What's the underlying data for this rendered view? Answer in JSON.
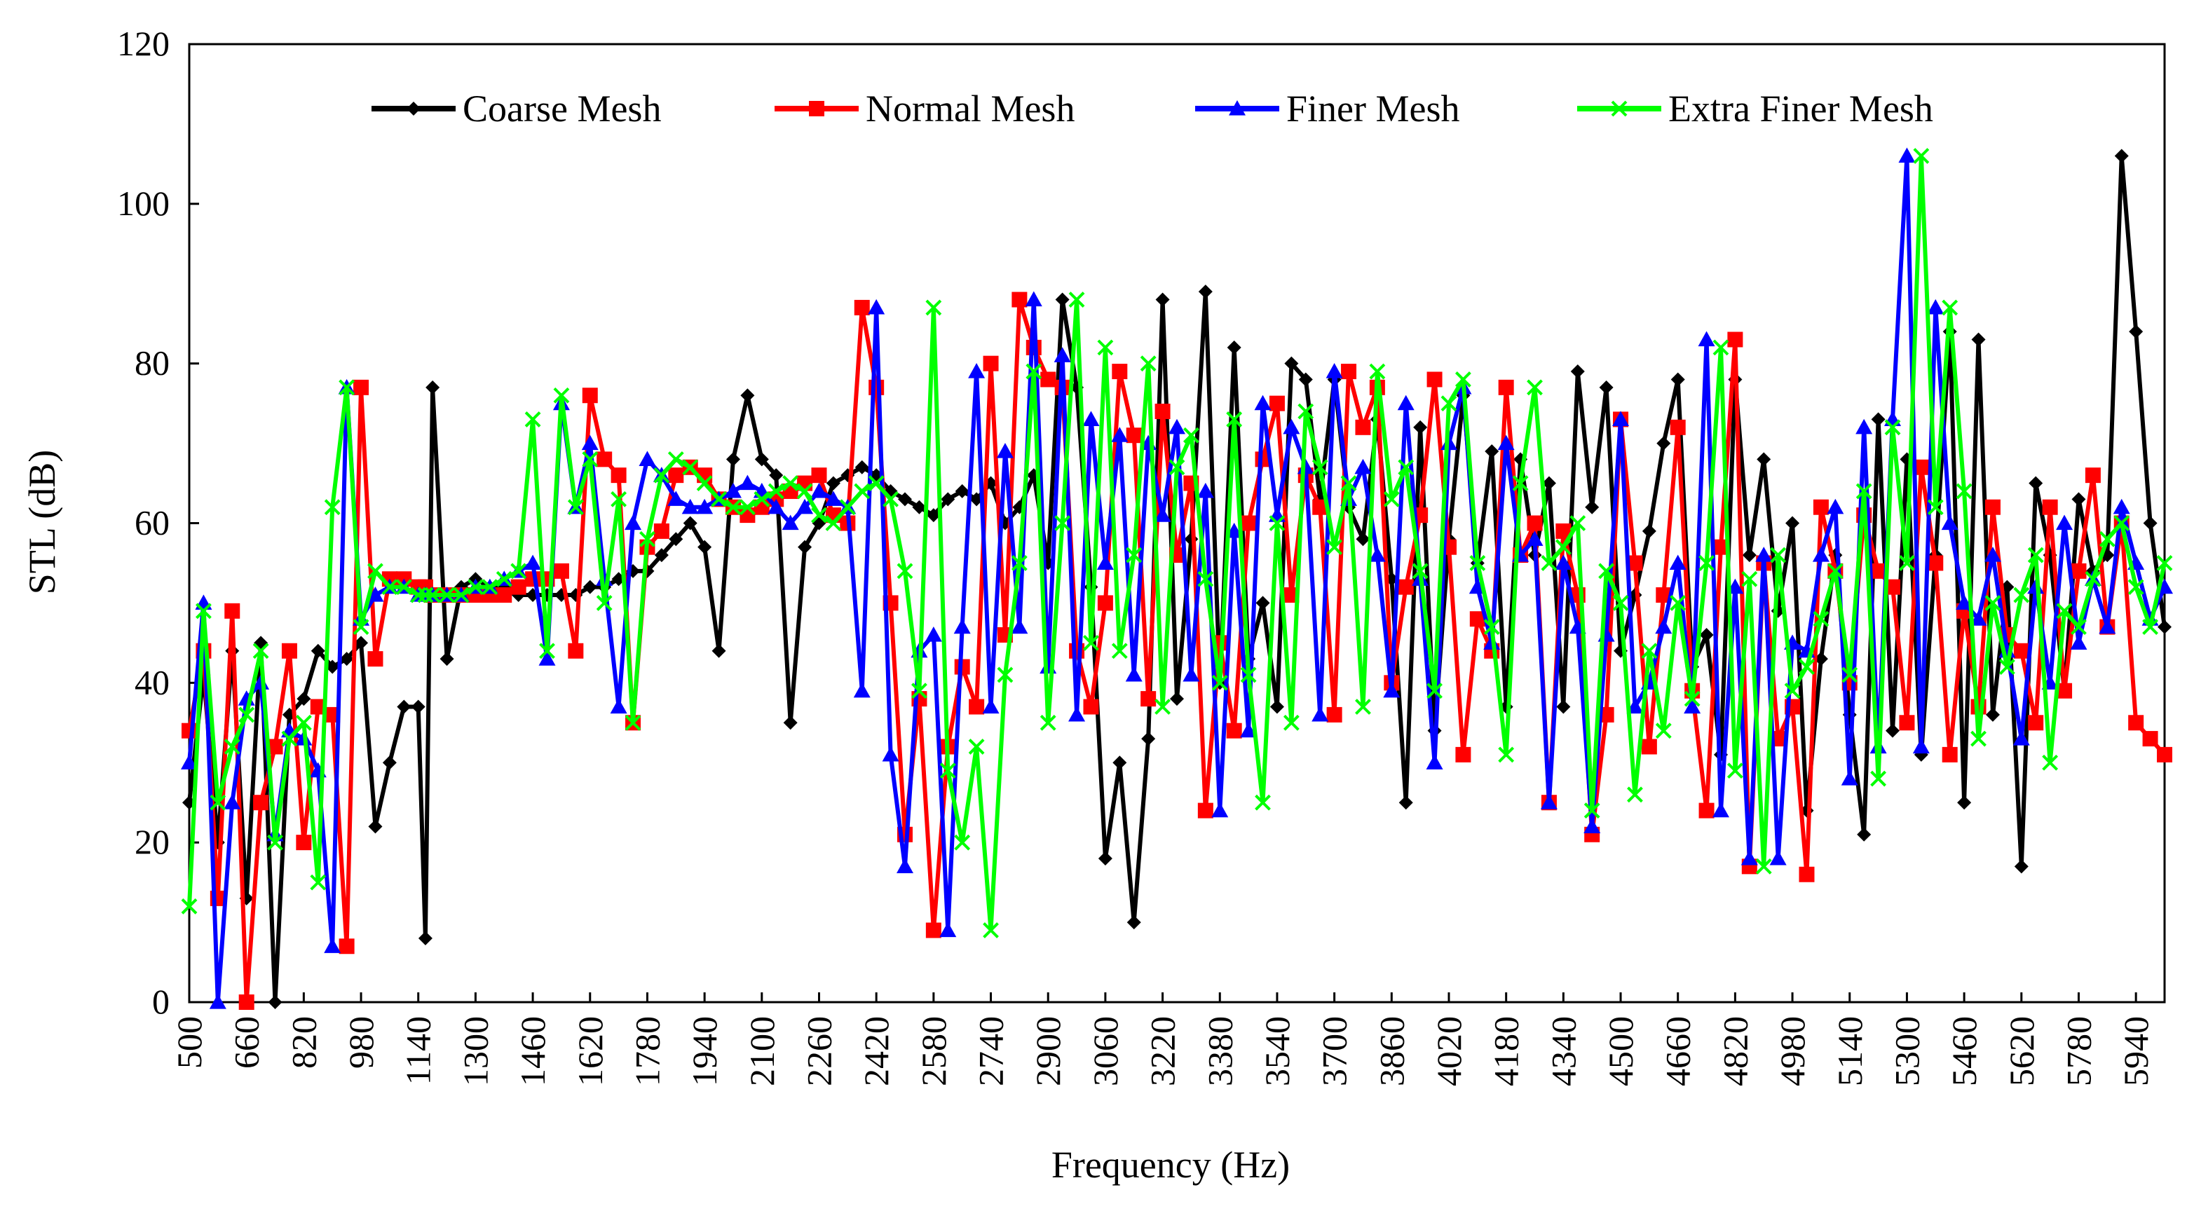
{
  "chart_data": {
    "type": "line",
    "title": "",
    "xlabel": "Frequency (Hz)",
    "ylabel": "STL (dB)",
    "xlim": [
      500,
      6020
    ],
    "ylim": [
      0,
      120
    ],
    "y_ticks": [
      0,
      20,
      40,
      60,
      80,
      100,
      120
    ],
    "x_ticks": [
      500,
      660,
      820,
      980,
      1140,
      1300,
      1460,
      1620,
      1780,
      1940,
      2100,
      2260,
      2420,
      2580,
      2740,
      2900,
      3060,
      3220,
      3380,
      3540,
      3700,
      3860,
      4020,
      4180,
      4340,
      4500,
      4660,
      4820,
      4980,
      5140,
      5300,
      5460,
      5620,
      5780,
      5940
    ],
    "grid": false,
    "legend_position": "top",
    "colors": {
      "Coarse Mesh": "#000000",
      "Normal Mesh": "#ff0000",
      "Finer Mesh": "#0000ff",
      "Extra Finer Mesh": "#00ff00"
    },
    "markers": {
      "Coarse Mesh": "diamond",
      "Normal Mesh": "square",
      "Finer Mesh": "triangle",
      "Extra Finer Mesh": "x"
    },
    "series": [
      {
        "name": "Coarse Mesh",
        "x": [
          500,
          540,
          580,
          620,
          660,
          700,
          740,
          780,
          820,
          860,
          900,
          940,
          980,
          1020,
          1060,
          1100,
          1140,
          1160,
          1180,
          1220,
          1260,
          1300,
          1340,
          1380,
          1420,
          1460,
          1500,
          1540,
          1580,
          1620,
          1660,
          1700,
          1740,
          1780,
          1820,
          1860,
          1900,
          1940,
          1980,
          2020,
          2060,
          2100,
          2140,
          2180,
          2220,
          2260,
          2300,
          2340,
          2380,
          2420,
          2460,
          2500,
          2540,
          2580,
          2620,
          2660,
          2700,
          2740,
          2780,
          2820,
          2860,
          2900,
          2940,
          2980,
          3020,
          3060,
          3100,
          3140,
          3180,
          3220,
          3260,
          3300,
          3340,
          3380,
          3420,
          3460,
          3500,
          3540,
          3580,
          3620,
          3660,
          3700,
          3740,
          3780,
          3820,
          3860,
          3900,
          3940,
          3980,
          4020,
          4060,
          4100,
          4140,
          4180,
          4220,
          4260,
          4300,
          4340,
          4380,
          4420,
          4460,
          4500,
          4540,
          4580,
          4620,
          4660,
          4700,
          4740,
          4780,
          4820,
          4860,
          4900,
          4940,
          4980,
          5020,
          5060,
          5100,
          5140,
          5180,
          5220,
          5260,
          5300,
          5340,
          5380,
          5420,
          5460,
          5500,
          5540,
          5580,
          5620,
          5660,
          5700,
          5740,
          5780,
          5820,
          5860,
          5900,
          5940,
          5980,
          6020
        ],
        "values": [
          25,
          41,
          20,
          44,
          13,
          45,
          0,
          36,
          38,
          44,
          42,
          43,
          45,
          22,
          30,
          37,
          37,
          8,
          77,
          43,
          52,
          53,
          52,
          52,
          51,
          51,
          51,
          51,
          51,
          52,
          52,
          53,
          54,
          54,
          56,
          58,
          60,
          57,
          44,
          68,
          76,
          68,
          66,
          35,
          57,
          60,
          65,
          66,
          67,
          66,
          64,
          63,
          62,
          61,
          63,
          64,
          63,
          65,
          60,
          62,
          66,
          55,
          88,
          77,
          52,
          18,
          30,
          10,
          33,
          88,
          38,
          58,
          89,
          40,
          82,
          43,
          50,
          37,
          80,
          78,
          63,
          78,
          62,
          58,
          73,
          53,
          25,
          72,
          34,
          58,
          76,
          55,
          69,
          37,
          68,
          56,
          65,
          37,
          79,
          62,
          77,
          44,
          51,
          59,
          70,
          78,
          42,
          46,
          31,
          78,
          56,
          68,
          49,
          60,
          24,
          43,
          56,
          36,
          21,
          73,
          34,
          68,
          31,
          56,
          84,
          25,
          83,
          36,
          52,
          17,
          65,
          56,
          39,
          63,
          54,
          56,
          106,
          84,
          60,
          47
        ],
        "note": ""
      },
      {
        "name": "Normal Mesh",
        "x": [
          500,
          540,
          580,
          620,
          660,
          700,
          740,
          780,
          820,
          860,
          900,
          940,
          980,
          1020,
          1060,
          1100,
          1140,
          1160,
          1180,
          1220,
          1260,
          1300,
          1340,
          1380,
          1420,
          1460,
          1500,
          1540,
          1580,
          1620,
          1660,
          1700,
          1740,
          1780,
          1820,
          1860,
          1900,
          1940,
          1980,
          2020,
          2060,
          2100,
          2140,
          2180,
          2220,
          2260,
          2300,
          2340,
          2380,
          2420,
          2460,
          2500,
          2540,
          2580,
          2620,
          2660,
          2700,
          2740,
          2780,
          2820,
          2860,
          2900,
          2940,
          2980,
          3020,
          3060,
          3100,
          3140,
          3180,
          3220,
          3260,
          3300,
          3340,
          3380,
          3420,
          3460,
          3500,
          3540,
          3580,
          3620,
          3660,
          3700,
          3740,
          3780,
          3820,
          3860,
          3900,
          3940,
          3980,
          4020,
          4060,
          4100,
          4140,
          4180,
          4220,
          4260,
          4300,
          4340,
          4380,
          4420,
          4460,
          4500,
          4540,
          4580,
          4620,
          4660,
          4700,
          4740,
          4780,
          4820,
          4860,
          4900,
          4940,
          4980,
          5020,
          5060,
          5100,
          5140,
          5180,
          5220,
          5260,
          5300,
          5340,
          5380,
          5420,
          5460,
          5500,
          5540,
          5580,
          5620,
          5660,
          5700,
          5740,
          5780,
          5820,
          5860,
          5900,
          5940,
          5980,
          6020
        ],
        "values": [
          34,
          44,
          13,
          49,
          0,
          25,
          32,
          44,
          20,
          37,
          36,
          7,
          77,
          43,
          53,
          53,
          52,
          52,
          51,
          51,
          51,
          51,
          51,
          51,
          52,
          53,
          53,
          54,
          44,
          76,
          68,
          66,
          35,
          57,
          59,
          66,
          67,
          66,
          63,
          62,
          61,
          62,
          63,
          64,
          65,
          66,
          61,
          60,
          87,
          77,
          50,
          21,
          38,
          9,
          32,
          42,
          37,
          80,
          46,
          88,
          82,
          78,
          77,
          44,
          37,
          50,
          79,
          71,
          38,
          74,
          56,
          65,
          24,
          45,
          34,
          60,
          68,
          75,
          51,
          66,
          62,
          36,
          79,
          72,
          77,
          40,
          52,
          61,
          78,
          57,
          31,
          48,
          44,
          77,
          56,
          60,
          25,
          59,
          51,
          21,
          36,
          73,
          55,
          32,
          51,
          72,
          39,
          24,
          57,
          83,
          17,
          55,
          33,
          37,
          16,
          62,
          54,
          40,
          61,
          54,
          52,
          35,
          67,
          55,
          31,
          49,
          37,
          62,
          46,
          44,
          35,
          62,
          39,
          54,
          66,
          47,
          60,
          35,
          33,
          31
        ],
        "note": ""
      },
      {
        "name": "Finer Mesh",
        "x": [
          500,
          540,
          580,
          620,
          660,
          700,
          740,
          780,
          820,
          860,
          900,
          940,
          980,
          1020,
          1060,
          1100,
          1140,
          1160,
          1180,
          1220,
          1260,
          1300,
          1340,
          1380,
          1420,
          1460,
          1500,
          1540,
          1580,
          1620,
          1660,
          1700,
          1740,
          1780,
          1820,
          1860,
          1900,
          1940,
          1980,
          2020,
          2060,
          2100,
          2140,
          2180,
          2220,
          2260,
          2300,
          2340,
          2380,
          2420,
          2460,
          2500,
          2540,
          2580,
          2620,
          2660,
          2700,
          2740,
          2780,
          2820,
          2860,
          2900,
          2940,
          2980,
          3020,
          3060,
          3100,
          3140,
          3180,
          3220,
          3260,
          3300,
          3340,
          3380,
          3420,
          3460,
          3500,
          3540,
          3580,
          3620,
          3660,
          3700,
          3740,
          3780,
          3820,
          3860,
          3900,
          3940,
          3980,
          4020,
          4060,
          4100,
          4140,
          4180,
          4220,
          4260,
          4300,
          4340,
          4380,
          4420,
          4460,
          4500,
          4540,
          4580,
          4620,
          4660,
          4700,
          4740,
          4780,
          4820,
          4860,
          4900,
          4940,
          4980,
          5020,
          5060,
          5100,
          5140,
          5180,
          5220,
          5260,
          5300,
          5340,
          5380,
          5420,
          5460,
          5500,
          5540,
          5580,
          5620,
          5660,
          5700,
          5740,
          5780,
          5820,
          5860,
          5900,
          5940,
          5980,
          6020
        ],
        "values": [
          30,
          50,
          0,
          25,
          38,
          40,
          21,
          34,
          33,
          29,
          7,
          77,
          48,
          51,
          52,
          52,
          51,
          51,
          51,
          51,
          51,
          52,
          52,
          53,
          54,
          55,
          43,
          75,
          62,
          70,
          53,
          37,
          60,
          68,
          66,
          63,
          62,
          62,
          63,
          64,
          65,
          64,
          62,
          60,
          62,
          64,
          63,
          62,
          39,
          87,
          31,
          17,
          44,
          46,
          9,
          47,
          79,
          37,
          69,
          47,
          88,
          42,
          81,
          36,
          73,
          55,
          71,
          41,
          70,
          61,
          72,
          41,
          64,
          24,
          59,
          34,
          75,
          61,
          72,
          67,
          36,
          79,
          63,
          67,
          56,
          39,
          75,
          53,
          30,
          70,
          77,
          52,
          45,
          70,
          56,
          58,
          25,
          55,
          47,
          22,
          46,
          73,
          37,
          40,
          47,
          55,
          37,
          83,
          24,
          52,
          18,
          56,
          18,
          45,
          44,
          56,
          62,
          28,
          72,
          32,
          73,
          106,
          32,
          87,
          60,
          50,
          48,
          56,
          44,
          33,
          52,
          40,
          60,
          45,
          53,
          47,
          62,
          55,
          48,
          52
        ],
        "note": ""
      },
      {
        "name": "Extra Finer Mesh",
        "x": [
          500,
          540,
          580,
          620,
          660,
          700,
          740,
          780,
          820,
          860,
          900,
          940,
          980,
          1020,
          1060,
          1100,
          1140,
          1160,
          1180,
          1220,
          1260,
          1300,
          1340,
          1380,
          1420,
          1460,
          1500,
          1540,
          1580,
          1620,
          1660,
          1700,
          1740,
          1780,
          1820,
          1860,
          1900,
          1940,
          1980,
          2020,
          2060,
          2100,
          2140,
          2180,
          2220,
          2260,
          2300,
          2340,
          2380,
          2420,
          2460,
          2500,
          2540,
          2580,
          2620,
          2660,
          2700,
          2740,
          2780,
          2820,
          2860,
          2900,
          2940,
          2980,
          3020,
          3060,
          3100,
          3140,
          3180,
          3220,
          3260,
          3300,
          3340,
          3380,
          3420,
          3460,
          3500,
          3540,
          3580,
          3620,
          3660,
          3700,
          3740,
          3780,
          3820,
          3860,
          3900,
          3940,
          3980,
          4020,
          4060,
          4100,
          4140,
          4180,
          4220,
          4260,
          4300,
          4340,
          4380,
          4420,
          4460,
          4500,
          4540,
          4580,
          4620,
          4660,
          4700,
          4740,
          4780,
          4820,
          4860,
          4900,
          4940,
          4980,
          5020,
          5060,
          5100,
          5140,
          5180,
          5220,
          5260,
          5300,
          5340,
          5380,
          5420,
          5460,
          5500,
          5540,
          5580,
          5620,
          5660,
          5700,
          5740,
          5780,
          5820,
          5860,
          5900,
          5940,
          5980,
          6020
        ],
        "values": [
          12,
          49,
          25,
          32,
          36,
          44,
          20,
          33,
          35,
          15,
          62,
          77,
          47,
          54,
          52,
          52,
          51,
          51,
          51,
          51,
          51,
          52,
          52,
          53,
          54,
          73,
          44,
          76,
          62,
          68,
          50,
          63,
          35,
          58,
          66,
          68,
          67,
          65,
          63,
          62,
          62,
          63,
          64,
          65,
          64,
          61,
          60,
          62,
          64,
          65,
          63,
          54,
          39,
          87,
          29,
          20,
          32,
          9,
          41,
          55,
          79,
          35,
          60,
          88,
          45,
          82,
          44,
          56,
          80,
          37,
          67,
          71,
          53,
          40,
          73,
          41,
          25,
          60,
          35,
          74,
          67,
          57,
          65,
          37,
          79,
          63,
          67,
          54,
          39,
          75,
          78,
          55,
          47,
          31,
          65,
          77,
          55,
          57,
          60,
          24,
          54,
          50,
          26,
          44,
          34,
          50,
          38,
          55,
          82,
          29,
          53,
          17,
          56,
          39,
          42,
          48,
          54,
          41,
          64,
          28,
          72,
          55,
          106,
          62,
          87,
          64,
          33,
          50,
          42,
          51,
          56,
          30,
          49,
          47,
          53,
          58,
          60,
          52,
          47,
          55
        ],
        "note": ""
      }
    ]
  }
}
